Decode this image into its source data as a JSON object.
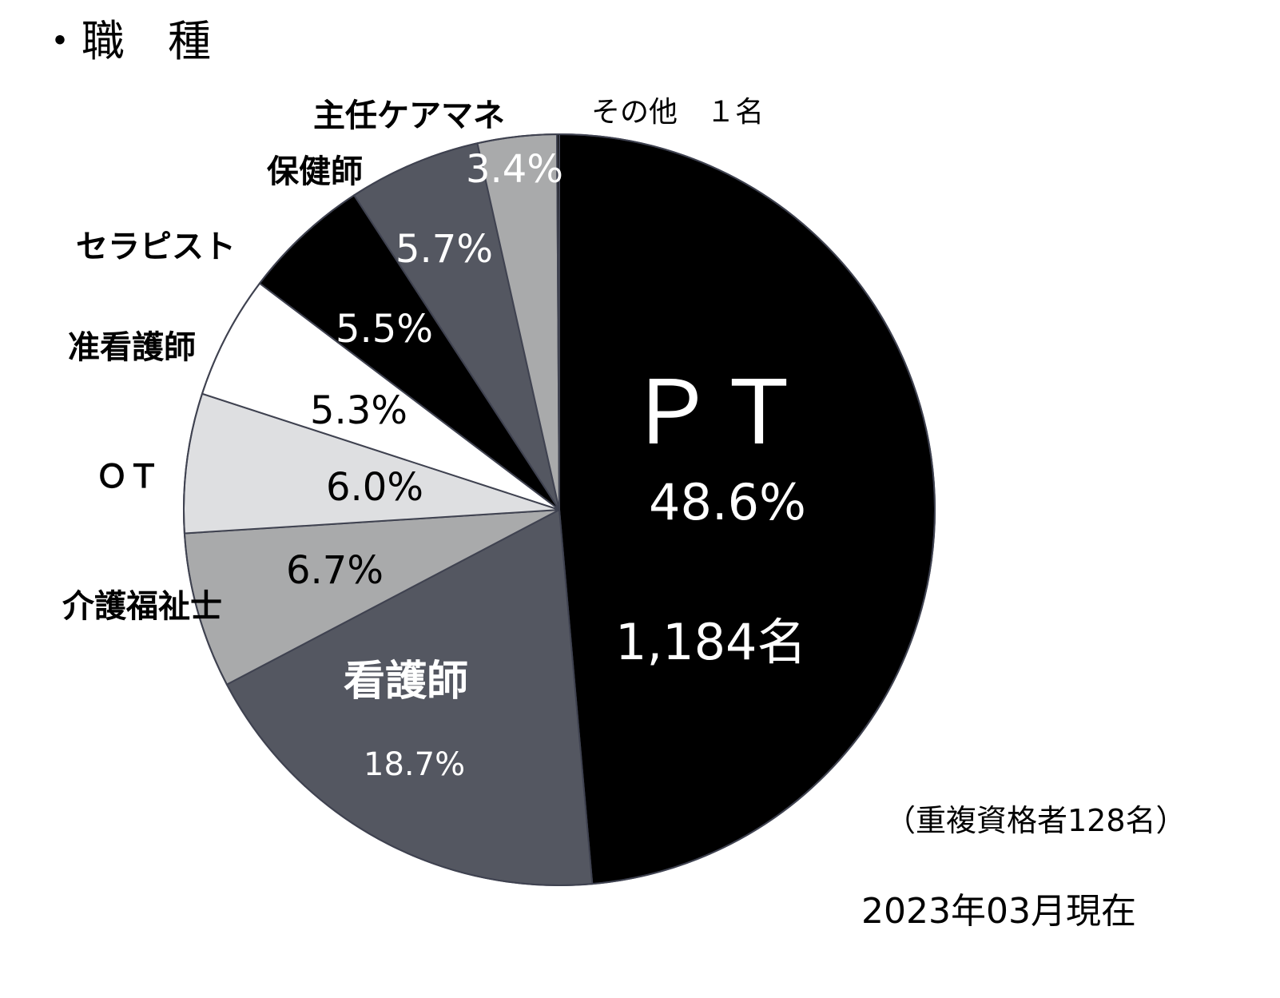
{
  "heading": "・職　種",
  "chart_data": {
    "type": "pie",
    "categories": [
      "ＰＴ",
      "看護師",
      "介護福祉士",
      "ＯＴ",
      "准看護師",
      "セラピスト",
      "保健師",
      "主任ケアマネ",
      "その他　１名"
    ],
    "values": [
      48.6,
      18.7,
      6.7,
      6.0,
      5.3,
      5.5,
      5.7,
      3.4,
      0.1
    ],
    "value_labels": [
      "48.6%",
      "18.7%",
      "6.7%",
      "6.0%",
      "5.3%",
      "5.5%",
      "5.7%",
      "3.4%",
      ""
    ],
    "colors": [
      "#000000",
      "#545761",
      "#a9aaab",
      "#dedfe1",
      "#ffffff",
      "#000000",
      "#545761",
      "#a9aaab",
      "#000000"
    ],
    "pt_count": "1,184名"
  },
  "footnote": "（重複資格者128名）",
  "as_of": "2023年03月現在"
}
